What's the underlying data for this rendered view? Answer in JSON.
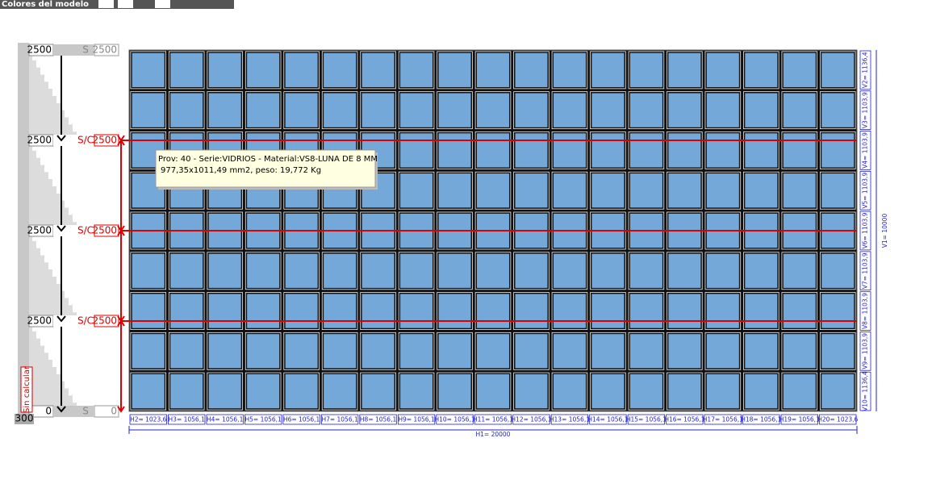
{
  "toolbar": {
    "title": "Colores del modelo"
  },
  "ruler": {
    "levels": [
      {
        "left": "2500",
        "status": "S",
        "right": "2500"
      },
      {
        "left": "2500",
        "status": "S/C",
        "right": "2500"
      },
      {
        "left": "2500",
        "status": "S/C",
        "right": "2500"
      },
      {
        "left": "2500",
        "status": "S/C",
        "right": "2500"
      },
      {
        "left": "0",
        "status": "S",
        "right": "0"
      }
    ],
    "base": "300",
    "state": "Sin calcular"
  },
  "tooltip": {
    "lines": [
      "Prov: 40 - Serie:VIDRIOS - Material:VS8-LUNA DE 8 MM",
      "977,35x1011,49 mm2, peso:  19,772 Kg"
    ]
  },
  "horizontal": {
    "divisions": [
      "H2= 1023,6",
      "H3= 1056,1",
      "H4= 1056,1",
      "H5= 1056,1",
      "H6= 1056,1",
      "H7= 1056,1",
      "H8= 1056,1",
      "H9= 1056,1",
      "H10= 1056,1",
      "H11= 1056,1",
      "H12= 1056,1",
      "H13= 1056,1",
      "H14= 1056,1",
      "H15= 1056,1",
      "H16= 1056,1",
      "H17= 1056,1",
      "H18= 1056,1",
      "H19= 1056,1",
      "H20= 1023,6"
    ],
    "total": "H1= 20000"
  },
  "vertical": {
    "divisions": [
      "V2= 1136,4",
      "V3= 1103,9",
      "V4= 1103,9",
      "V5= 1103,9",
      "V6= 1103,9",
      "V7= 1103,9",
      "V8= 1103,9",
      "V9= 1103,9",
      "V10= 1136,4"
    ],
    "total": "V1= 10000"
  }
}
